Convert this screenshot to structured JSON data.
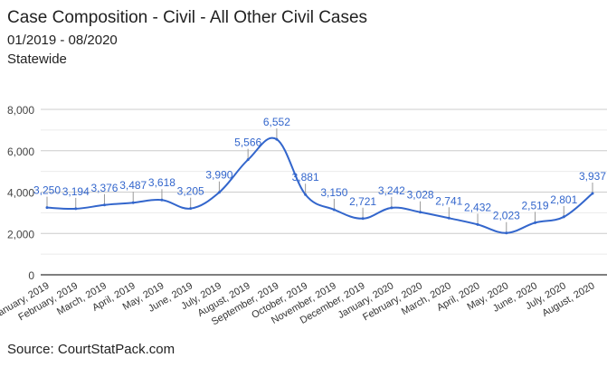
{
  "chart_data": {
    "type": "line",
    "title": "Case Composition - Civil - All Other Civil Cases",
    "subtitle": "01/2019 - 08/2020",
    "scope": "Statewide",
    "source": "Source: CourtStatPack.com",
    "categories": [
      "January, 2019",
      "February, 2019",
      "March, 2019",
      "April, 2019",
      "May, 2019",
      "June, 2019",
      "July, 2019",
      "August, 2019",
      "September, 2019",
      "October, 2019",
      "November, 2019",
      "December, 2019",
      "January, 2020",
      "February, 2020",
      "March, 2020",
      "April, 2020",
      "May, 2020",
      "June, 2020",
      "July, 2020",
      "August, 2020"
    ],
    "values": [
      3250,
      3194,
      3376,
      3487,
      3618,
      3205,
      3990,
      5566,
      6552,
      3881,
      3150,
      2721,
      3242,
      3028,
      2741,
      2432,
      2023,
      2519,
      2801,
      3937
    ],
    "value_labels": [
      "3,250",
      "3,194",
      "3,376",
      "3,487",
      "3,618",
      "3,205",
      "3,990",
      "5,566",
      "6,552",
      "3,881",
      "3,150",
      "2,721",
      "3,242",
      "3,028",
      "2,741",
      "2,432",
      "2,023",
      "2,519",
      "2,801",
      "3,937"
    ],
    "yticks": [
      "0",
      "2,000",
      "4,000",
      "6,000",
      "8,000"
    ],
    "ylim": [
      0,
      8000
    ],
    "grid": true,
    "line_color": "#3366cc"
  }
}
